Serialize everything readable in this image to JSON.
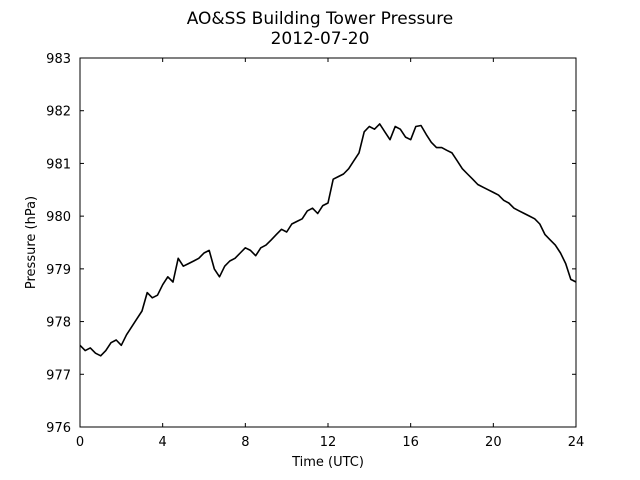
{
  "chart_data": {
    "type": "line",
    "title": "AO&SS Building Tower Pressure",
    "subtitle": "2012-07-20",
    "xlabel": "Time (UTC)",
    "ylabel": "Pressure (hPa)",
    "xlim": [
      0,
      24
    ],
    "ylim": [
      976,
      983
    ],
    "xticks": [
      0,
      4,
      8,
      12,
      16,
      20,
      24
    ],
    "yticks": [
      976,
      977,
      978,
      979,
      980,
      981,
      982,
      983
    ],
    "grid": false,
    "line_color": "#000000",
    "series": [
      {
        "x": [
          0,
          0.25,
          0.5,
          0.75,
          1.0,
          1.25,
          1.5,
          1.75,
          2.0,
          2.25,
          2.5,
          2.75,
          3.0,
          3.25,
          3.5,
          3.75,
          4.0,
          4.25,
          4.5,
          4.75,
          5.0,
          5.25,
          5.5,
          5.75,
          6.0,
          6.25,
          6.5,
          6.75,
          7.0,
          7.25,
          7.5,
          7.75,
          8.0,
          8.25,
          8.5,
          8.75,
          9.0,
          9.25,
          9.5,
          9.75,
          10.0,
          10.25,
          10.5,
          10.75,
          11.0,
          11.25,
          11.5,
          11.75,
          12.0,
          12.25,
          12.5,
          12.75,
          13.0,
          13.25,
          13.5,
          13.75,
          14.0,
          14.25,
          14.5,
          14.75,
          15.0,
          15.25,
          15.5,
          15.75,
          16.0,
          16.25,
          16.5,
          16.75,
          17.0,
          17.25,
          17.5,
          17.75,
          18.0,
          18.25,
          18.5,
          18.75,
          19.0,
          19.25,
          19.5,
          19.75,
          20.0,
          20.25,
          20.5,
          20.75,
          21.0,
          21.25,
          21.5,
          21.75,
          22.0,
          22.25,
          22.5,
          22.75,
          23.0,
          23.25,
          23.5,
          23.75,
          24.0
        ],
        "y": [
          977.55,
          977.45,
          977.5,
          977.4,
          977.35,
          977.45,
          977.6,
          977.65,
          977.55,
          977.75,
          977.9,
          978.05,
          978.2,
          978.55,
          978.45,
          978.5,
          978.7,
          978.85,
          978.75,
          979.2,
          979.05,
          979.1,
          979.15,
          979.2,
          979.3,
          979.35,
          979.0,
          978.85,
          979.05,
          979.15,
          979.2,
          979.3,
          979.4,
          979.35,
          979.25,
          979.4,
          979.45,
          979.55,
          979.65,
          979.75,
          979.7,
          979.85,
          979.9,
          979.95,
          980.1,
          980.15,
          980.05,
          980.2,
          980.25,
          980.7,
          980.75,
          980.8,
          980.9,
          981.05,
          981.2,
          981.6,
          981.7,
          981.65,
          981.75,
          981.6,
          981.45,
          981.7,
          981.65,
          981.5,
          981.45,
          981.7,
          981.72,
          981.55,
          981.4,
          981.3,
          981.3,
          981.25,
          981.2,
          981.05,
          980.9,
          980.8,
          980.7,
          980.6,
          980.55,
          980.5,
          980.45,
          980.4,
          980.3,
          980.25,
          980.15,
          980.1,
          980.05,
          980.0,
          979.95,
          979.85,
          979.65,
          979.55,
          979.45,
          979.3,
          979.1,
          978.8,
          978.75
        ]
      }
    ]
  }
}
